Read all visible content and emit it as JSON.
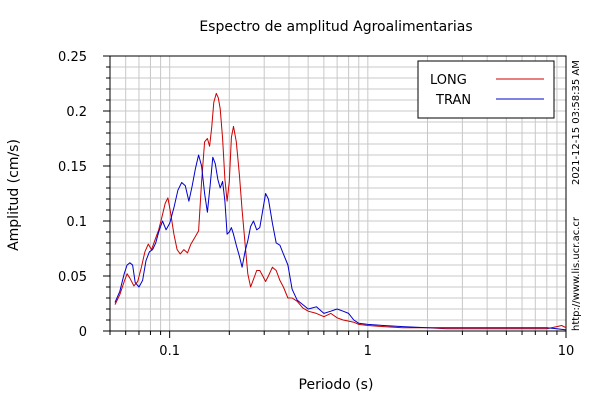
{
  "chart_data": {
    "type": "line",
    "title": "Espectro de amplitud Agroalimentarias",
    "xlabel": "Periodo (s)",
    "ylabel": "Amplitud (cm/s)",
    "x_scale": "log",
    "xlim": [
      0.05,
      10
    ],
    "ylim": [
      0,
      0.25
    ],
    "x_tick_values": [
      0.1,
      1,
      10
    ],
    "x_tick_labels": [
      "0.1",
      "1",
      "10"
    ],
    "y_tick_values": [
      0,
      0.05,
      0.1,
      0.15,
      0.2,
      0.25
    ],
    "y_tick_labels": [
      "0",
      "0.05",
      "0.1",
      "0.15",
      "0.2",
      "0.25"
    ],
    "grid": true,
    "legend_position": "top-right",
    "series": [
      {
        "name": "LONG",
        "color": "#cc0000",
        "points": [
          [
            0.053,
            0.024
          ],
          [
            0.056,
            0.033
          ],
          [
            0.059,
            0.045
          ],
          [
            0.061,
            0.052
          ],
          [
            0.063,
            0.048
          ],
          [
            0.066,
            0.041
          ],
          [
            0.069,
            0.045
          ],
          [
            0.072,
            0.058
          ],
          [
            0.075,
            0.072
          ],
          [
            0.078,
            0.079
          ],
          [
            0.081,
            0.074
          ],
          [
            0.084,
            0.082
          ],
          [
            0.088,
            0.092
          ],
          [
            0.091,
            0.102
          ],
          [
            0.095,
            0.116
          ],
          [
            0.098,
            0.121
          ],
          [
            0.101,
            0.108
          ],
          [
            0.105,
            0.088
          ],
          [
            0.109,
            0.074
          ],
          [
            0.113,
            0.07
          ],
          [
            0.118,
            0.074
          ],
          [
            0.123,
            0.071
          ],
          [
            0.128,
            0.079
          ],
          [
            0.134,
            0.085
          ],
          [
            0.14,
            0.091
          ],
          [
            0.145,
            0.136
          ],
          [
            0.15,
            0.172
          ],
          [
            0.155,
            0.175
          ],
          [
            0.159,
            0.168
          ],
          [
            0.163,
            0.185
          ],
          [
            0.167,
            0.208
          ],
          [
            0.172,
            0.216
          ],
          [
            0.176,
            0.212
          ],
          [
            0.18,
            0.202
          ],
          [
            0.185,
            0.175
          ],
          [
            0.19,
            0.138
          ],
          [
            0.195,
            0.118
          ],
          [
            0.2,
            0.136
          ],
          [
            0.205,
            0.176
          ],
          [
            0.21,
            0.186
          ],
          [
            0.217,
            0.172
          ],
          [
            0.225,
            0.142
          ],
          [
            0.232,
            0.11
          ],
          [
            0.24,
            0.08
          ],
          [
            0.248,
            0.052
          ],
          [
            0.256,
            0.04
          ],
          [
            0.265,
            0.047
          ],
          [
            0.275,
            0.055
          ],
          [
            0.285,
            0.055
          ],
          [
            0.295,
            0.05
          ],
          [
            0.305,
            0.045
          ],
          [
            0.315,
            0.05
          ],
          [
            0.33,
            0.058
          ],
          [
            0.345,
            0.055
          ],
          [
            0.36,
            0.046
          ],
          [
            0.375,
            0.04
          ],
          [
            0.395,
            0.03
          ],
          [
            0.415,
            0.03
          ],
          [
            0.44,
            0.027
          ],
          [
            0.47,
            0.021
          ],
          [
            0.5,
            0.018
          ],
          [
            0.55,
            0.016
          ],
          [
            0.6,
            0.013
          ],
          [
            0.65,
            0.016
          ],
          [
            0.7,
            0.012
          ],
          [
            0.75,
            0.01
          ],
          [
            0.8,
            0.009
          ],
          [
            0.85,
            0.008
          ],
          [
            0.9,
            0.006
          ],
          [
            1.0,
            0.005
          ],
          [
            1.2,
            0.004
          ],
          [
            1.5,
            0.003
          ],
          [
            2.0,
            0.003
          ],
          [
            2.5,
            0.002
          ],
          [
            3.0,
            0.002
          ],
          [
            4.0,
            0.002
          ],
          [
            5.0,
            0.002
          ],
          [
            6.0,
            0.002
          ],
          [
            7.0,
            0.002
          ],
          [
            8.0,
            0.002
          ],
          [
            9.0,
            0.004
          ],
          [
            9.5,
            0.005
          ],
          [
            10.0,
            0.003
          ]
        ]
      },
      {
        "name": "TRAN",
        "color": "#0000cc",
        "points": [
          [
            0.053,
            0.026
          ],
          [
            0.056,
            0.036
          ],
          [
            0.059,
            0.052
          ],
          [
            0.061,
            0.06
          ],
          [
            0.063,
            0.062
          ],
          [
            0.065,
            0.06
          ],
          [
            0.067,
            0.044
          ],
          [
            0.07,
            0.04
          ],
          [
            0.073,
            0.046
          ],
          [
            0.076,
            0.064
          ],
          [
            0.079,
            0.072
          ],
          [
            0.082,
            0.074
          ],
          [
            0.085,
            0.08
          ],
          [
            0.088,
            0.09
          ],
          [
            0.092,
            0.1
          ],
          [
            0.096,
            0.092
          ],
          [
            0.1,
            0.098
          ],
          [
            0.105,
            0.112
          ],
          [
            0.11,
            0.128
          ],
          [
            0.115,
            0.135
          ],
          [
            0.12,
            0.132
          ],
          [
            0.125,
            0.118
          ],
          [
            0.13,
            0.132
          ],
          [
            0.135,
            0.148
          ],
          [
            0.14,
            0.16
          ],
          [
            0.145,
            0.15
          ],
          [
            0.15,
            0.125
          ],
          [
            0.155,
            0.108
          ],
          [
            0.16,
            0.132
          ],
          [
            0.165,
            0.158
          ],
          [
            0.17,
            0.152
          ],
          [
            0.175,
            0.138
          ],
          [
            0.18,
            0.13
          ],
          [
            0.185,
            0.136
          ],
          [
            0.19,
            0.118
          ],
          [
            0.195,
            0.088
          ],
          [
            0.2,
            0.09
          ],
          [
            0.205,
            0.094
          ],
          [
            0.21,
            0.088
          ],
          [
            0.217,
            0.078
          ],
          [
            0.225,
            0.068
          ],
          [
            0.232,
            0.058
          ],
          [
            0.24,
            0.072
          ],
          [
            0.248,
            0.082
          ],
          [
            0.256,
            0.095
          ],
          [
            0.265,
            0.1
          ],
          [
            0.275,
            0.092
          ],
          [
            0.285,
            0.094
          ],
          [
            0.295,
            0.11
          ],
          [
            0.305,
            0.125
          ],
          [
            0.315,
            0.12
          ],
          [
            0.33,
            0.098
          ],
          [
            0.345,
            0.08
          ],
          [
            0.36,
            0.078
          ],
          [
            0.375,
            0.07
          ],
          [
            0.395,
            0.06
          ],
          [
            0.415,
            0.038
          ],
          [
            0.44,
            0.028
          ],
          [
            0.47,
            0.024
          ],
          [
            0.5,
            0.02
          ],
          [
            0.55,
            0.022
          ],
          [
            0.6,
            0.016
          ],
          [
            0.65,
            0.018
          ],
          [
            0.7,
            0.02
          ],
          [
            0.75,
            0.018
          ],
          [
            0.8,
            0.016
          ],
          [
            0.85,
            0.01
          ],
          [
            0.9,
            0.007
          ],
          [
            1.0,
            0.006
          ],
          [
            1.2,
            0.005
          ],
          [
            1.5,
            0.004
          ],
          [
            2.0,
            0.003
          ],
          [
            2.5,
            0.003
          ],
          [
            3.0,
            0.003
          ],
          [
            4.0,
            0.003
          ],
          [
            5.0,
            0.003
          ],
          [
            6.0,
            0.003
          ],
          [
            7.0,
            0.003
          ],
          [
            8.0,
            0.003
          ],
          [
            9.0,
            0.002
          ],
          [
            10.0,
            0.001
          ]
        ]
      }
    ],
    "side_labels": [
      "http://www.lis.ucr.ac.cr",
      "2021-12-15 03:58:35 AM"
    ]
  }
}
